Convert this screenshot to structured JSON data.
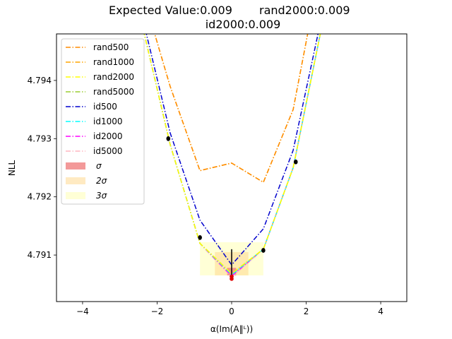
{
  "chart_data": {
    "type": "line",
    "title_line1_left": "Expected Value:0.009",
    "title_line1_right": "rand2000:0.009",
    "title_line2": "id2000:0.009",
    "xlabel": "α(Im(A‖ᴸ))",
    "ylabel": "NLL",
    "xlim": [
      -4.7,
      4.7
    ],
    "ylim": [
      4.7902,
      4.7948
    ],
    "xticks": [
      -4,
      -2,
      0,
      2,
      4
    ],
    "xtick_labels": [
      "−4",
      "−2",
      "0",
      "2",
      "4"
    ],
    "yticks": [
      4.791,
      4.792,
      4.793,
      4.794
    ],
    "ytick_labels": [
      "4.791",
      "4.792",
      "4.793",
      "4.794"
    ],
    "legend_position": "upper-left",
    "series": [
      {
        "name": "rand500",
        "color": "#ff8c00",
        "x": [
          -2.25,
          -1.65,
          -0.85,
          0,
          0.85,
          1.65,
          2.25
        ],
        "y": [
          4.7952,
          4.7939,
          4.79245,
          4.79258,
          4.79225,
          4.7935,
          4.7955
        ]
      },
      {
        "name": "rand1000",
        "color": "#ffa500",
        "x": [
          -2.25,
          -1.65,
          -0.85,
          0,
          0.85,
          1.65,
          2.25
        ],
        "y": [
          4.7952,
          4.7939,
          4.79245,
          4.79258,
          4.79225,
          4.7935,
          4.7955
        ]
      },
      {
        "name": "rand2000",
        "color": "#ffff00",
        "x": [
          -2.6,
          -1.65,
          -0.85,
          0,
          0.85,
          1.65,
          2.6
        ],
        "y": [
          4.7955,
          4.7929,
          4.7912,
          4.79068,
          4.7911,
          4.7925,
          4.7955
        ]
      },
      {
        "name": "rand5000",
        "color": "#9acd32",
        "x": [
          -2.6,
          -1.65,
          -0.85,
          0,
          0.85,
          1.65,
          2.6
        ],
        "y": [
          4.7955,
          4.7929,
          4.7912,
          4.79068,
          4.7911,
          4.7925,
          4.7955
        ]
      },
      {
        "name": "id500",
        "color": "#0000cd",
        "x": [
          -2.55,
          -1.65,
          -0.85,
          0,
          0.85,
          1.65,
          2.55
        ],
        "y": [
          4.7955,
          4.7931,
          4.7916,
          4.79083,
          4.79145,
          4.7928,
          4.7955
        ]
      },
      {
        "name": "id1000",
        "color": "#00ffff",
        "x": [
          -2.6,
          -1.65,
          -0.85,
          0,
          0.85,
          1.65,
          2.6
        ],
        "y": [
          4.7955,
          4.7929,
          4.7912,
          4.79066,
          4.7911,
          4.7925,
          4.7955
        ]
      },
      {
        "name": "id2000",
        "color": "#ff00ff",
        "x": [
          -2.6,
          -1.65,
          -0.85,
          0,
          0.85,
          1.65,
          2.6
        ],
        "y": [
          4.7955,
          4.7929,
          4.7912,
          4.79064,
          4.7911,
          4.7925,
          4.7955
        ]
      },
      {
        "name": "id5000",
        "color": "#ffb6c1",
        "x": [
          -2.6,
          -1.65,
          -0.85,
          0,
          0.85,
          1.65,
          2.6
        ],
        "y": [
          4.7955,
          4.7929,
          4.7912,
          4.79062,
          4.7911,
          4.7925,
          4.7955
        ]
      }
    ],
    "bands": [
      {
        "name": "σ",
        "color": "#f08080",
        "opacity": 0.8,
        "x": [
          -0.12,
          0.12
        ],
        "y_low": 4.79065,
        "y_high": 4.79078
      },
      {
        "name": "2σ",
        "color": "#ffd890",
        "opacity": 0.55,
        "x": [
          -0.45,
          0.45
        ],
        "y_low": 4.79065,
        "y_high": 4.79105
      },
      {
        "name": "3σ",
        "color": "#ffffcc",
        "opacity": 0.8,
        "x": [
          -0.85,
          0.85
        ],
        "y_low": 4.79065,
        "y_high": 4.79122
      }
    ],
    "markers": [
      {
        "x": -1.7,
        "y": 4.793
      },
      {
        "x": -0.85,
        "y": 4.7913
      },
      {
        "x": 0.85,
        "y": 4.79108
      },
      {
        "x": 1.72,
        "y": 4.7926
      }
    ],
    "minimum_points": [
      {
        "x": 0,
        "y": 4.79059
      },
      {
        "x": 0,
        "y": 4.79063
      }
    ],
    "vertical_marker": {
      "x": 0,
      "y_low": 4.7906,
      "y_high": 4.7911
    }
  }
}
